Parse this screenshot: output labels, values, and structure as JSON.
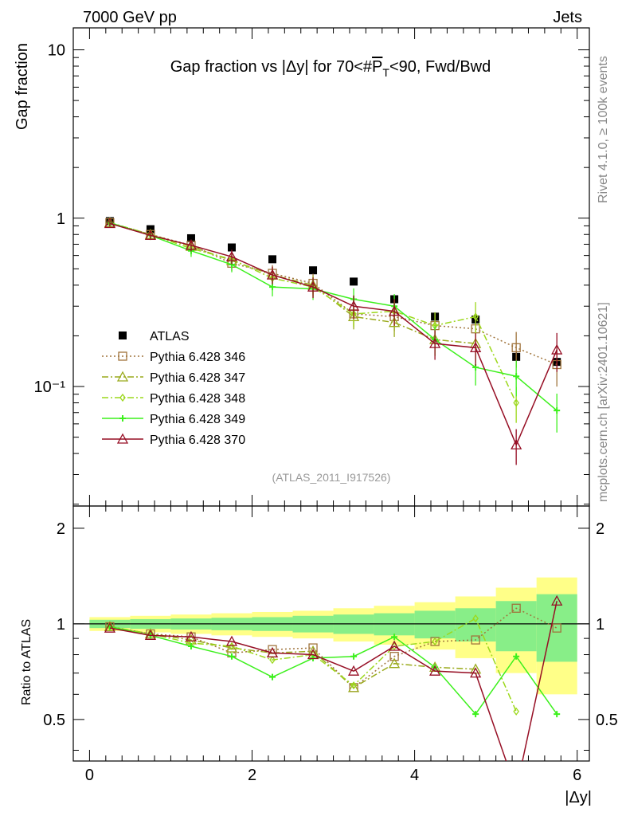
{
  "header": {
    "left": "7000 GeV pp",
    "right": "Jets"
  },
  "side_text": {
    "rivet": "Rivet 4.1.0, ≥ 100k events",
    "mcplots": "mcplots.cern.ch [arXiv:2401.10621]"
  },
  "colors": {
    "ATLAS": "#000000",
    "p346": "#a0743c",
    "p347": "#9aaa1c",
    "p348": "#9cd81c",
    "p349": "#3cf01c",
    "p370": "#960e24",
    "band_inner": "#88ee88",
    "band_outer": "#ffff88"
  },
  "chart_data": {
    "type": "scatter",
    "title": "Gap fraction vs |Δy| for 70<#P̅T<90, Fwd/Bwd",
    "title_parts": {
      "pre": "Gap fraction vs |Δy| for 70<#",
      "pt": "P",
      "sub": "T",
      "post": "<90, Fwd/Bwd"
    },
    "watermark": "(ATLAS_2011_I917526)",
    "xlabel": "|Δy|",
    "ylabel": "Gap fraction",
    "ratio_ylabel": "Ratio to ATLAS",
    "xlim": [
      -0.2,
      6.15
    ],
    "ylim": [
      0.0195,
      13.5
    ],
    "yscale": "log",
    "ratio_ylim": [
      0.37,
      2.35
    ],
    "x_ticks": [
      "0",
      "2",
      "4",
      "6"
    ],
    "x_tick_values": [
      0,
      2,
      4,
      6
    ],
    "y_ticks": [
      "10⁻¹",
      "1",
      "10"
    ],
    "y_tick_values": [
      0.1,
      1,
      10
    ],
    "ratio_ticks": [
      "0.5",
      "1",
      "2"
    ],
    "ratio_tick_values": [
      0.5,
      1,
      2
    ],
    "legend_position": "middle-left",
    "x": [
      0.25,
      0.75,
      1.25,
      1.75,
      2.25,
      2.75,
      3.25,
      3.75,
      4.25,
      4.75,
      5.25,
      5.75
    ],
    "series": [
      {
        "name": "ATLAS",
        "style": "data",
        "colorKey": "ATLAS",
        "values": [
          0.96,
          0.86,
          0.76,
          0.67,
          0.57,
          0.49,
          0.42,
          0.33,
          0.26,
          0.25,
          0.15,
          0.14
        ],
        "ratio": [
          1,
          1,
          1,
          1,
          1,
          1,
          1,
          1,
          1,
          1,
          1,
          1
        ]
      },
      {
        "name": "Pythia 6.428 346",
        "style": "dotted",
        "marker": "square",
        "colorKey": "p346",
        "values": [
          0.94,
          0.8,
          0.69,
          0.54,
          0.47,
          0.41,
          0.27,
          0.26,
          0.23,
          0.22,
          0.17,
          0.135
        ],
        "ratio": [
          0.98,
          0.93,
          0.91,
          0.81,
          0.83,
          0.84,
          0.63,
          0.79,
          0.88,
          0.89,
          1.12,
          0.97
        ]
      },
      {
        "name": "Pythia 6.428 347",
        "style": "dashdot",
        "marker": "triangle",
        "colorKey": "p347",
        "values": [
          0.94,
          0.8,
          0.68,
          0.56,
          0.46,
          0.4,
          0.26,
          0.24,
          0.19,
          0.18,
          null,
          null
        ],
        "ratio": [
          0.98,
          0.93,
          0.89,
          0.84,
          0.81,
          0.82,
          0.63,
          0.75,
          0.73,
          0.72,
          null,
          null
        ]
      },
      {
        "name": "Pythia 6.428 348",
        "style": "dashdot",
        "marker": "diamond",
        "colorKey": "p348",
        "values": [
          0.94,
          0.8,
          0.66,
          0.57,
          0.44,
          0.39,
          0.27,
          0.28,
          0.23,
          0.26,
          0.08,
          null
        ],
        "ratio": [
          0.98,
          0.93,
          0.87,
          0.85,
          0.77,
          0.8,
          0.64,
          0.85,
          0.88,
          1.04,
          0.53,
          null
        ]
      },
      {
        "name": "Pythia 6.428 349",
        "style": "solid",
        "marker": "cross",
        "colorKey": "p349",
        "values": [
          0.94,
          0.79,
          0.64,
          0.53,
          0.39,
          0.38,
          0.33,
          0.3,
          0.19,
          0.13,
          0.115,
          0.072
        ],
        "ratio": [
          0.98,
          0.92,
          0.85,
          0.79,
          0.68,
          0.78,
          0.79,
          0.91,
          0.73,
          0.52,
          0.79,
          0.52
        ]
      },
      {
        "name": "Pythia 6.428 370",
        "style": "solid",
        "marker": "triangle",
        "colorKey": "p370",
        "values": [
          0.93,
          0.79,
          0.69,
          0.59,
          0.46,
          0.39,
          0.3,
          0.28,
          0.18,
          0.17,
          0.045,
          0.165
        ],
        "ratio": [
          0.97,
          0.92,
          0.91,
          0.88,
          0.81,
          0.8,
          0.71,
          0.85,
          0.71,
          0.7,
          0.3,
          1.18
        ]
      }
    ],
    "ratio_band_inner": [
      0.03,
      0.035,
      0.04,
      0.045,
      0.05,
      0.06,
      0.07,
      0.08,
      0.1,
      0.12,
      0.18,
      0.24
    ],
    "ratio_band_outer": [
      0.05,
      0.06,
      0.07,
      0.08,
      0.09,
      0.1,
      0.12,
      0.14,
      0.17,
      0.22,
      0.3,
      0.4
    ]
  }
}
